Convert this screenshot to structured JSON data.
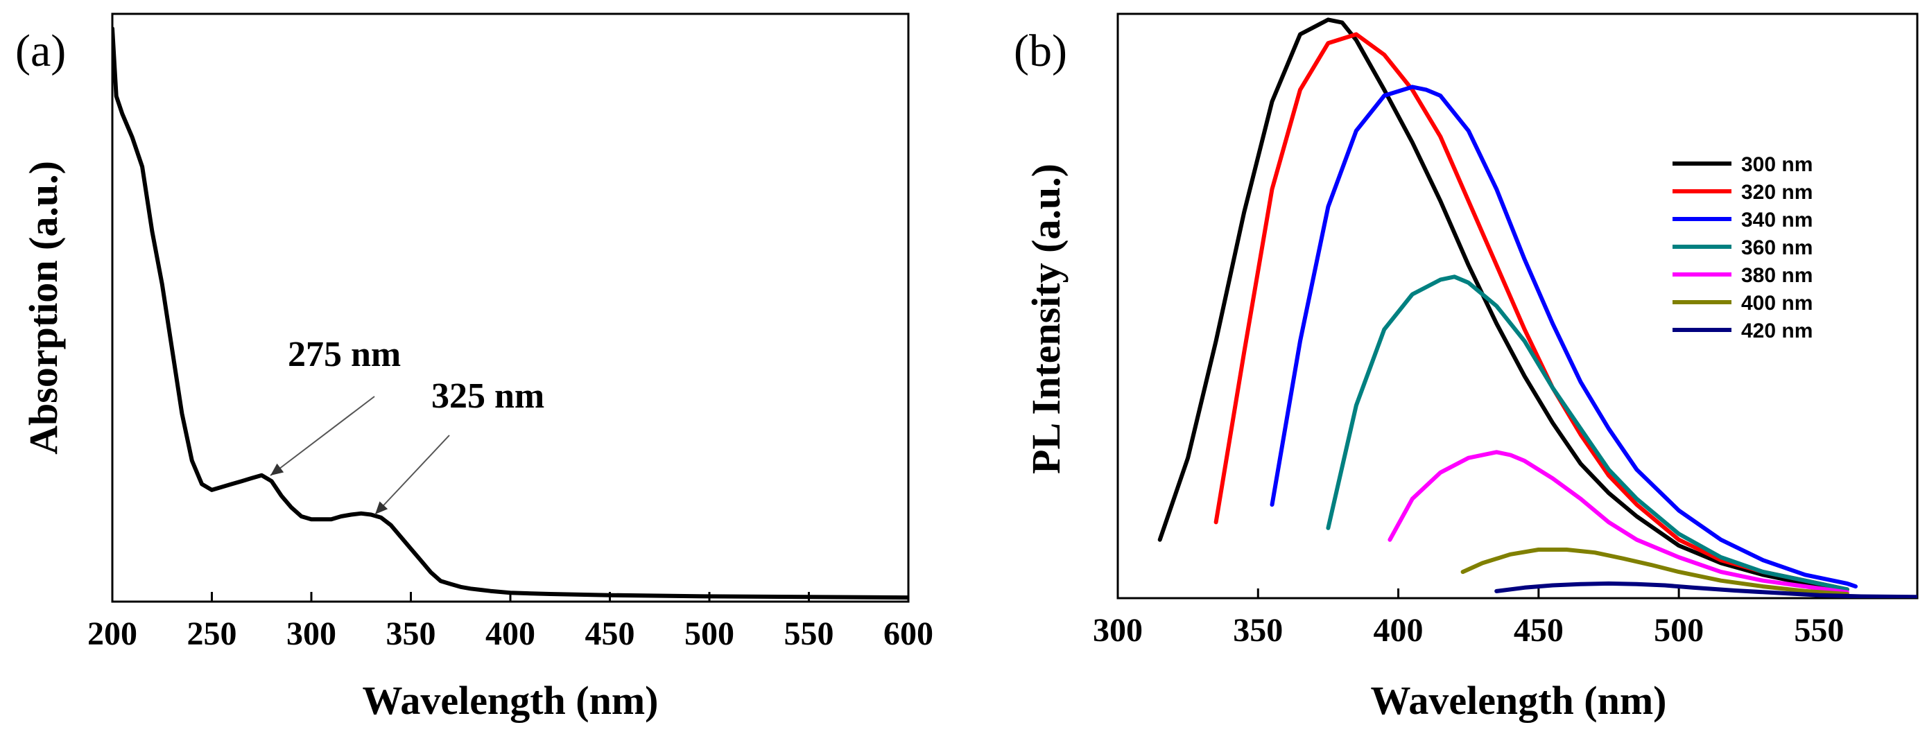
{
  "chart_data": [
    {
      "type": "line",
      "panel_label": "(a)",
      "xlabel": "Wavelength (nm)",
      "ylabel": "Absorption (a.u.)",
      "xlim": [
        200,
        600
      ],
      "ylim": [
        0,
        1
      ],
      "xticks": [
        200,
        250,
        300,
        350,
        400,
        450,
        500,
        550,
        600
      ],
      "yticks": [],
      "grid": false,
      "series": [
        {
          "name": "Absorption",
          "color": "#000000",
          "x": [
            200,
            202,
            205,
            210,
            215,
            220,
            225,
            230,
            235,
            240,
            245,
            250,
            255,
            260,
            265,
            270,
            275,
            280,
            285,
            290,
            295,
            300,
            305,
            310,
            315,
            320,
            325,
            330,
            335,
            340,
            345,
            350,
            355,
            360,
            365,
            370,
            375,
            380,
            385,
            390,
            400,
            420,
            450,
            500,
            550,
            600
          ],
          "y": [
            0.975,
            0.86,
            0.83,
            0.79,
            0.74,
            0.63,
            0.54,
            0.43,
            0.32,
            0.24,
            0.2,
            0.19,
            0.195,
            0.2,
            0.205,
            0.21,
            0.215,
            0.205,
            0.18,
            0.16,
            0.145,
            0.14,
            0.14,
            0.14,
            0.145,
            0.148,
            0.15,
            0.148,
            0.143,
            0.13,
            0.11,
            0.09,
            0.07,
            0.05,
            0.035,
            0.03,
            0.025,
            0.022,
            0.02,
            0.018,
            0.015,
            0.013,
            0.011,
            0.009,
            0.008,
            0.007
          ]
        }
      ],
      "annotations": [
        {
          "text": "275 nm",
          "x": 275,
          "y": 0.215
        },
        {
          "text": "325 nm",
          "x": 325,
          "y": 0.15
        }
      ]
    },
    {
      "type": "line",
      "panel_label": "(b)",
      "xlabel": "Wavelength (nm)",
      "ylabel": "PL Intensity (a.u.)",
      "xlim": [
        300,
        585
      ],
      "ylim": [
        0,
        1
      ],
      "xticks": [
        300,
        350,
        400,
        450,
        500,
        550
      ],
      "yticks": [],
      "grid": false,
      "legend_position": "right",
      "series": [
        {
          "name": "300 nm",
          "color": "#000000",
          "x": [
            315,
            325,
            335,
            345,
            355,
            365,
            375,
            380,
            385,
            395,
            405,
            415,
            425,
            435,
            445,
            455,
            465,
            475,
            485,
            500,
            515,
            530,
            545,
            560
          ],
          "y": [
            0.1,
            0.24,
            0.44,
            0.66,
            0.85,
            0.965,
            0.99,
            0.985,
            0.955,
            0.87,
            0.78,
            0.68,
            0.57,
            0.47,
            0.38,
            0.3,
            0.23,
            0.18,
            0.14,
            0.09,
            0.06,
            0.04,
            0.025,
            0.015
          ]
        },
        {
          "name": "320 nm",
          "color": "#ff0000",
          "x": [
            335,
            345,
            355,
            365,
            375,
            385,
            395,
            405,
            415,
            425,
            435,
            445,
            455,
            465,
            475,
            485,
            500,
            515,
            530,
            545,
            560
          ],
          "y": [
            0.13,
            0.42,
            0.7,
            0.87,
            0.95,
            0.965,
            0.93,
            0.87,
            0.79,
            0.68,
            0.57,
            0.46,
            0.36,
            0.28,
            0.21,
            0.16,
            0.1,
            0.065,
            0.045,
            0.03,
            0.015
          ]
        },
        {
          "name": "340 nm",
          "color": "#0000ff",
          "x": [
            355,
            365,
            375,
            385,
            395,
            405,
            410,
            415,
            425,
            435,
            445,
            455,
            465,
            475,
            485,
            500,
            515,
            530,
            545,
            560,
            563
          ],
          "y": [
            0.16,
            0.44,
            0.67,
            0.8,
            0.86,
            0.875,
            0.87,
            0.86,
            0.8,
            0.7,
            0.58,
            0.47,
            0.37,
            0.29,
            0.22,
            0.15,
            0.1,
            0.065,
            0.04,
            0.025,
            0.02
          ]
        },
        {
          "name": "360 nm",
          "color": "#008080",
          "x": [
            375,
            385,
            395,
            405,
            415,
            420,
            425,
            435,
            445,
            455,
            465,
            475,
            485,
            500,
            515,
            530,
            545,
            560
          ],
          "y": [
            0.12,
            0.33,
            0.46,
            0.52,
            0.545,
            0.55,
            0.54,
            0.5,
            0.44,
            0.36,
            0.29,
            0.22,
            0.17,
            0.11,
            0.07,
            0.045,
            0.03,
            0.015
          ]
        },
        {
          "name": "380 nm",
          "color": "#ff00ff",
          "x": [
            397,
            405,
            415,
            425,
            435,
            440,
            445,
            455,
            465,
            475,
            485,
            500,
            515,
            530,
            545,
            560
          ],
          "y": [
            0.1,
            0.17,
            0.215,
            0.24,
            0.25,
            0.245,
            0.235,
            0.205,
            0.17,
            0.13,
            0.1,
            0.07,
            0.045,
            0.03,
            0.02,
            0.01
          ]
        },
        {
          "name": "400 nm",
          "color": "#808000",
          "x": [
            423,
            430,
            440,
            450,
            460,
            470,
            480,
            490,
            500,
            515,
            530,
            545,
            560
          ],
          "y": [
            0.045,
            0.06,
            0.075,
            0.083,
            0.083,
            0.078,
            0.068,
            0.057,
            0.045,
            0.03,
            0.02,
            0.012,
            0.007
          ]
        },
        {
          "name": "420 nm",
          "color": "#00007f",
          "x": [
            435,
            445,
            455,
            465,
            475,
            485,
            495,
            505,
            520,
            535,
            550,
            565,
            585
          ],
          "y": [
            0.012,
            0.018,
            0.022,
            0.024,
            0.025,
            0.024,
            0.022,
            0.018,
            0.013,
            0.009,
            0.005,
            0.003,
            0.002
          ]
        }
      ]
    }
  ]
}
